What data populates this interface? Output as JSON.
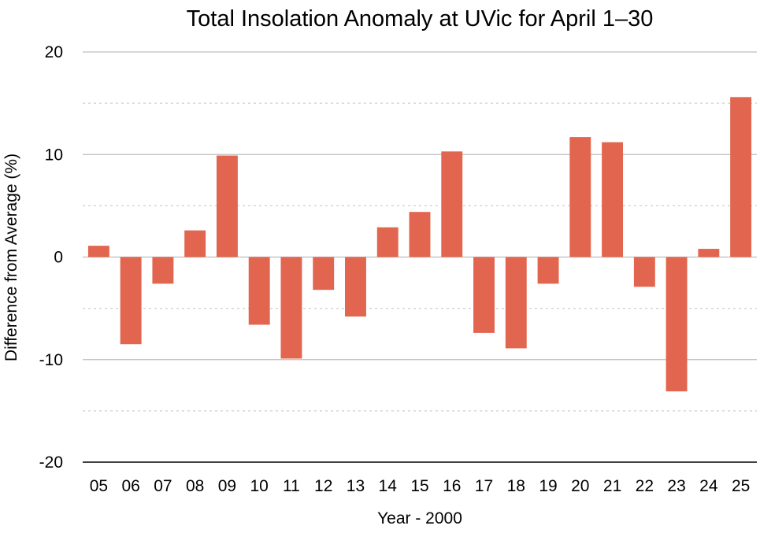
{
  "chart_data": {
    "type": "bar",
    "title": "Total Insolation Anomaly at UVic for April 1–30",
    "xlabel": "Year - 2000",
    "ylabel": "Difference from Average (%)",
    "categories": [
      "05",
      "06",
      "07",
      "08",
      "09",
      "10",
      "11",
      "12",
      "13",
      "14",
      "15",
      "16",
      "17",
      "18",
      "19",
      "20",
      "21",
      "22",
      "23",
      "24",
      "25"
    ],
    "values": [
      1.1,
      -8.5,
      -2.6,
      2.6,
      9.9,
      -6.6,
      -9.9,
      -3.2,
      -5.8,
      2.9,
      4.4,
      10.3,
      -7.4,
      -8.9,
      -2.6,
      11.7,
      11.2,
      -2.9,
      -13.1,
      0.8,
      15.6
    ],
    "ylim": [
      -20,
      20
    ],
    "yticks": [
      -20,
      -10,
      0,
      10,
      20
    ],
    "ytick_labels": [
      "-20",
      "-10",
      "0",
      "10",
      "20"
    ],
    "minor_grid": [
      -15,
      -5,
      5,
      15
    ],
    "grid": true,
    "legend": "none",
    "bar_color": "#e2654f"
  }
}
